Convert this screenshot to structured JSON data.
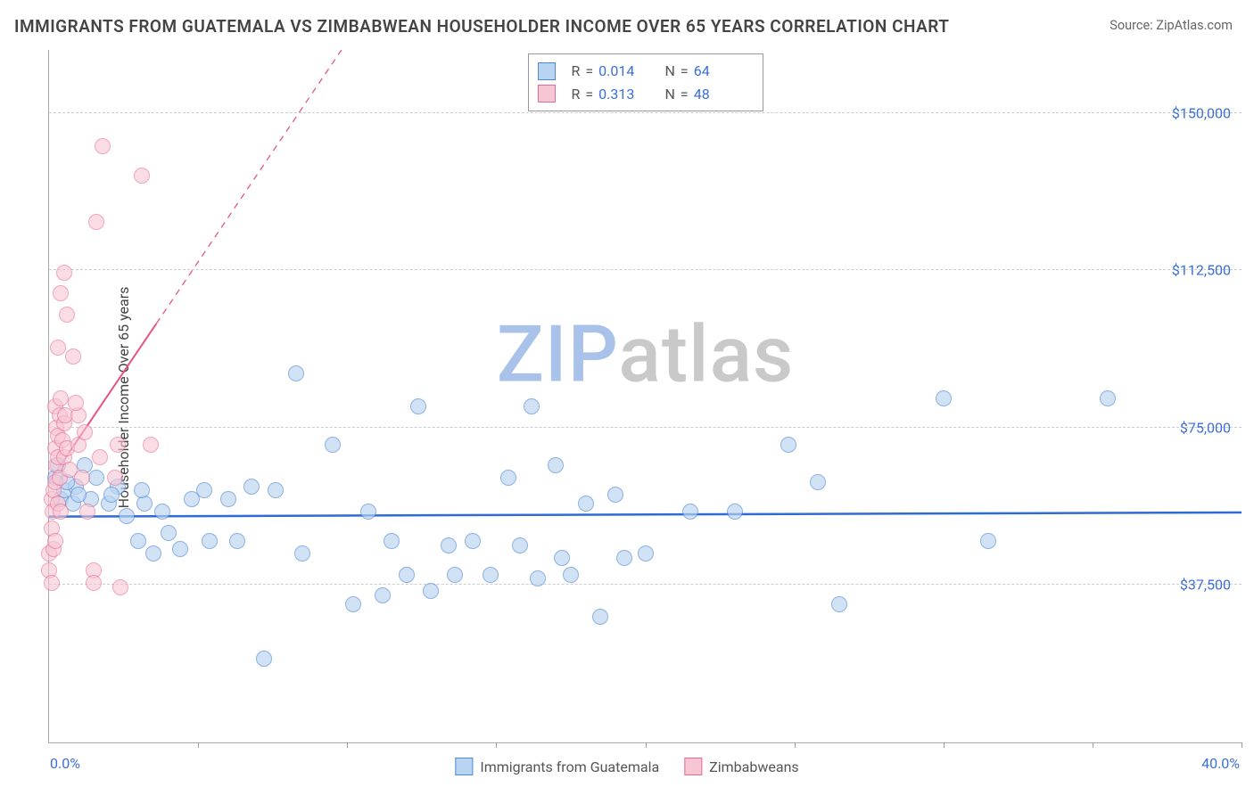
{
  "title": "IMMIGRANTS FROM GUATEMALA VS ZIMBABWEAN HOUSEHOLDER INCOME OVER 65 YEARS CORRELATION CHART",
  "source_label": "Source: ",
  "source_name": "ZipAtlas.com",
  "y_axis_label": "Householder Income Over 65 years",
  "watermark_z": "ZIP",
  "watermark_rest": "atlas",
  "watermark_color_z": "#a9c2ea",
  "watermark_color_rest": "#c9c9c9",
  "chart": {
    "type": "scatter",
    "background_color": "#ffffff",
    "grid_color": "#cccccc",
    "axis_color": "#aaaaaa",
    "x": {
      "min": 0.0,
      "max": 40.0,
      "label_min": "0.0%",
      "label_max": "40.0%",
      "tick_step_pct": 5
    },
    "y": {
      "min": 0,
      "max": 165000,
      "ticks": [
        {
          "v": 37500,
          "label": "$37,500"
        },
        {
          "v": 75000,
          "label": "$75,000"
        },
        {
          "v": 112500,
          "label": "$112,500"
        },
        {
          "v": 150000,
          "label": "$150,000"
        }
      ]
    },
    "series": [
      {
        "id": "guatemala",
        "label": "Immigrants from Guatemala",
        "fill": "#b9d4f1",
        "stroke": "#4f87d8",
        "marker_radius": 9,
        "opacity": 0.65,
        "R": "0.014",
        "N": "64",
        "trend": {
          "slope_per_xunit": 25,
          "intercept": 53800,
          "color": "#2f6bd6",
          "width": 2.5,
          "dash": "none"
        },
        "points": [
          [
            0.2,
            63000
          ],
          [
            0.3,
            66000
          ],
          [
            0.4,
            58000
          ],
          [
            0.5,
            60000
          ],
          [
            0.8,
            57000
          ],
          [
            0.9,
            61000
          ],
          [
            1.2,
            66000
          ],
          [
            1.4,
            58000
          ],
          [
            1.6,
            63000
          ],
          [
            2.0,
            57000
          ],
          [
            2.3,
            61000
          ],
          [
            2.6,
            54000
          ],
          [
            3.0,
            48000
          ],
          [
            3.2,
            57000
          ],
          [
            3.5,
            45000
          ],
          [
            3.8,
            55000
          ],
          [
            4.0,
            50000
          ],
          [
            4.4,
            46000
          ],
          [
            4.8,
            58000
          ],
          [
            5.2,
            60000
          ],
          [
            5.4,
            48000
          ],
          [
            6.0,
            58000
          ],
          [
            6.3,
            48000
          ],
          [
            6.8,
            61000
          ],
          [
            7.2,
            20000
          ],
          [
            7.6,
            60000
          ],
          [
            8.3,
            88000
          ],
          [
            8.5,
            45000
          ],
          [
            9.5,
            71000
          ],
          [
            10.2,
            33000
          ],
          [
            10.7,
            55000
          ],
          [
            11.2,
            35000
          ],
          [
            11.5,
            48000
          ],
          [
            12.0,
            40000
          ],
          [
            12.4,
            80000
          ],
          [
            12.8,
            36000
          ],
          [
            13.4,
            47000
          ],
          [
            13.6,
            40000
          ],
          [
            14.2,
            48000
          ],
          [
            14.8,
            40000
          ],
          [
            15.4,
            63000
          ],
          [
            15.8,
            47000
          ],
          [
            16.2,
            80000
          ],
          [
            16.4,
            39000
          ],
          [
            17.0,
            66000
          ],
          [
            17.2,
            44000
          ],
          [
            17.5,
            40000
          ],
          [
            18.0,
            57000
          ],
          [
            18.5,
            30000
          ],
          [
            19.0,
            59000
          ],
          [
            19.3,
            44000
          ],
          [
            20.0,
            45000
          ],
          [
            21.5,
            55000
          ],
          [
            23.0,
            55000
          ],
          [
            24.8,
            71000
          ],
          [
            25.8,
            62000
          ],
          [
            26.5,
            33000
          ],
          [
            30.0,
            82000
          ],
          [
            31.5,
            48000
          ],
          [
            35.5,
            82000
          ],
          [
            0.6,
            62000
          ],
          [
            1.0,
            59000
          ],
          [
            2.1,
            59000
          ],
          [
            3.1,
            60000
          ]
        ]
      },
      {
        "id": "zimbabwe",
        "label": "Zimbabweans",
        "fill": "#f7c6d4",
        "stroke": "#e86a90",
        "marker_radius": 9,
        "opacity": 0.6,
        "R": "0.313",
        "N": "48",
        "trend": {
          "slope_per_xunit": 10500,
          "intercept": 62000,
          "color": "#e65585",
          "width": 2,
          "dash": "6 5"
        },
        "points": [
          [
            0.0,
            41000
          ],
          [
            0.0,
            45000
          ],
          [
            0.1,
            51000
          ],
          [
            0.08,
            38000
          ],
          [
            0.1,
            58000
          ],
          [
            0.12,
            55000
          ],
          [
            0.15,
            60000
          ],
          [
            0.15,
            46000
          ],
          [
            0.2,
            62000
          ],
          [
            0.2,
            48000
          ],
          [
            0.22,
            70000
          ],
          [
            0.25,
            66000
          ],
          [
            0.2,
            80000
          ],
          [
            0.25,
            75000
          ],
          [
            0.3,
            68000
          ],
          [
            0.3,
            73000
          ],
          [
            0.35,
            78000
          ],
          [
            0.4,
            82000
          ],
          [
            0.3,
            57000
          ],
          [
            0.35,
            63000
          ],
          [
            0.4,
            55000
          ],
          [
            0.45,
            72000
          ],
          [
            0.5,
            68000
          ],
          [
            0.5,
            76000
          ],
          [
            0.55,
            78000
          ],
          [
            0.6,
            70000
          ],
          [
            0.3,
            94000
          ],
          [
            0.6,
            102000
          ],
          [
            0.8,
            92000
          ],
          [
            0.5,
            112000
          ],
          [
            0.4,
            107000
          ],
          [
            1.0,
            71000
          ],
          [
            1.0,
            78000
          ],
          [
            1.1,
            63000
          ],
          [
            1.2,
            74000
          ],
          [
            1.3,
            55000
          ],
          [
            1.5,
            41000
          ],
          [
            1.5,
            38000
          ],
          [
            1.7,
            68000
          ],
          [
            2.2,
            63000
          ],
          [
            2.3,
            71000
          ],
          [
            2.4,
            37000
          ],
          [
            1.6,
            124000
          ],
          [
            3.1,
            135000
          ],
          [
            3.4,
            71000
          ],
          [
            1.8,
            142000
          ],
          [
            0.9,
            81000
          ],
          [
            0.7,
            65000
          ]
        ]
      }
    ]
  },
  "legend_top": {
    "R_label": "R",
    "N_label": "N",
    "eq": "="
  },
  "colors": {
    "value_text": "#3b6fd8",
    "label_text": "#555555"
  }
}
